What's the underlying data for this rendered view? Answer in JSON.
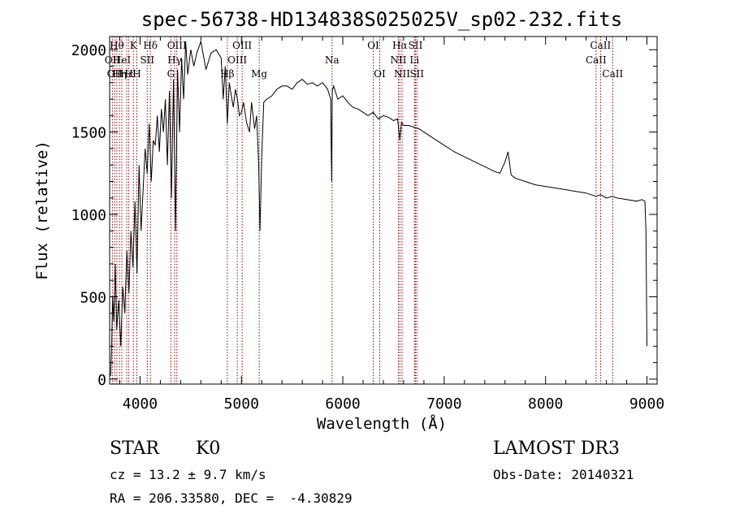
{
  "chart_data": {
    "type": "line",
    "title": "spec-56738-HD134838S025025V_sp02-232.fits",
    "xlabel": "Wavelength (Å)",
    "ylabel": "Flux (relative)",
    "xlim": [
      3700,
      9100
    ],
    "ylim": [
      -30,
      2080
    ],
    "xticks": [
      {
        "value": 4000,
        "label": "4000"
      },
      {
        "value": 5000,
        "label": "5000"
      },
      {
        "value": 6000,
        "label": "6000"
      },
      {
        "value": 7000,
        "label": "7000"
      },
      {
        "value": 8000,
        "label": "8000"
      },
      {
        "value": 9000,
        "label": "9000"
      }
    ],
    "yticks": [
      {
        "value": 0,
        "label": "0"
      },
      {
        "value": 500,
        "label": "500"
      },
      {
        "value": 1000,
        "label": "1000"
      },
      {
        "value": 1500,
        "label": "1500"
      },
      {
        "value": 2000,
        "label": "2000"
      }
    ],
    "series": [
      {
        "name": "spectrum",
        "color": "#000000",
        "x": [
          3710,
          3720,
          3730,
          3740,
          3755,
          3770,
          3790,
          3810,
          3830,
          3850,
          3870,
          3890,
          3910,
          3930,
          3950,
          3970,
          3990,
          4010,
          4030,
          4050,
          4070,
          4090,
          4110,
          4130,
          4150,
          4170,
          4190,
          4210,
          4230,
          4250,
          4270,
          4290,
          4310,
          4330,
          4350,
          4370,
          4390,
          4410,
          4430,
          4450,
          4470,
          4500,
          4530,
          4560,
          4600,
          4650,
          4700,
          4750,
          4800,
          4820,
          4840,
          4861,
          4880,
          4900,
          4920,
          4940,
          4960,
          4980,
          5000,
          5020,
          5050,
          5080,
          5100,
          5130,
          5150,
          5170,
          5183,
          5200,
          5220,
          5250,
          5300,
          5350,
          5400,
          5450,
          5500,
          5550,
          5600,
          5650,
          5700,
          5750,
          5800,
          5850,
          5880,
          5890,
          5896,
          5910,
          5950,
          6000,
          6050,
          6100,
          6150,
          6200,
          6250,
          6300,
          6350,
          6400,
          6450,
          6500,
          6540,
          6563,
          6580,
          6600,
          6650,
          6700,
          6750,
          6800,
          6850,
          6900,
          6950,
          7000,
          7100,
          7200,
          7300,
          7400,
          7500,
          7550,
          7600,
          7630,
          7660,
          7700,
          7800,
          7900,
          8000,
          8100,
          8200,
          8300,
          8400,
          8498,
          8542,
          8600,
          8662,
          8700,
          8800,
          8900,
          8950,
          8980,
          8990,
          9000
        ],
        "values": [
          20,
          200,
          500,
          350,
          700,
          300,
          480,
          200,
          560,
          400,
          780,
          520,
          900,
          680,
          1080,
          640,
          1300,
          900,
          1150,
          1400,
          1250,
          1550,
          1200,
          1450,
          1420,
          1600,
          1380,
          1640,
          1500,
          1700,
          1300,
          1750,
          1100,
          1820,
          900,
          1880,
          1500,
          1950,
          1700,
          2050,
          1850,
          2000,
          1900,
          1980,
          2050,
          1880,
          1980,
          2000,
          1950,
          1700,
          1900,
          1550,
          1800,
          1720,
          1650,
          1760,
          1700,
          1600,
          1620,
          1680,
          1560,
          1500,
          1680,
          1520,
          1600,
          1300,
          900,
          1350,
          1680,
          1700,
          1720,
          1760,
          1780,
          1780,
          1760,
          1800,
          1820,
          1790,
          1800,
          1780,
          1800,
          1760,
          1700,
          1200,
          1750,
          1780,
          1700,
          1720,
          1680,
          1650,
          1640,
          1620,
          1600,
          1620,
          1580,
          1600,
          1590,
          1570,
          1580,
          1450,
          1560,
          1540,
          1540,
          1530,
          1520,
          1500,
          1480,
          1460,
          1440,
          1420,
          1380,
          1350,
          1320,
          1290,
          1260,
          1250,
          1320,
          1380,
          1240,
          1220,
          1200,
          1180,
          1170,
          1160,
          1150,
          1140,
          1130,
          1110,
          1120,
          1100,
          1110,
          1100,
          1090,
          1080,
          1090,
          1080,
          900,
          200
        ]
      }
    ],
    "lines": [
      {
        "x": 3727,
        "label": "OII",
        "row": 2
      },
      {
        "x": 3750,
        "label": "OII",
        "row": 3
      },
      {
        "x": 3771,
        "label": "Hθ",
        "row": 1
      },
      {
        "x": 3797,
        "label": "Hη",
        "row": 3
      },
      {
        "x": 3820,
        "label": "HeI",
        "row": 2
      },
      {
        "x": 3869,
        "label": "Hε",
        "row": 3
      },
      {
        "x": 3889,
        "label": "H",
        "row": 3
      },
      {
        "x": 3934,
        "label": "K",
        "row": 1
      },
      {
        "x": 3968,
        "label": "H",
        "row": 3
      },
      {
        "x": 4071,
        "label": "SII",
        "row": 2
      },
      {
        "x": 4102,
        "label": "Hδ",
        "row": 1
      },
      {
        "x": 4304,
        "label": "G",
        "row": 3
      },
      {
        "x": 4341,
        "label": "Hγ",
        "row": 2
      },
      {
        "x": 4363,
        "label": "OIII",
        "row": 1
      },
      {
        "x": 4861,
        "label": "Hβ",
        "row": 3
      },
      {
        "x": 4959,
        "label": "OIII",
        "row": 2
      },
      {
        "x": 5007,
        "label": "OIII",
        "row": 1
      },
      {
        "x": 5175,
        "label": "Mg",
        "row": 3
      },
      {
        "x": 5894,
        "label": "Na",
        "row": 2
      },
      {
        "x": 6300,
        "label": "OI",
        "row": 1
      },
      {
        "x": 6364,
        "label": "OI",
        "row": 3
      },
      {
        "x": 6548,
        "label": "NII",
        "row": 2
      },
      {
        "x": 6563,
        "label": "Hα",
        "row": 1
      },
      {
        "x": 6584,
        "label": "NII",
        "row": 3
      },
      {
        "x": 6707,
        "label": "Li",
        "row": 2
      },
      {
        "x": 6717,
        "label": "SII",
        "row": 1
      },
      {
        "x": 6731,
        "label": "SII",
        "row": 3
      },
      {
        "x": 8498,
        "label": "CaII",
        "row": 2
      },
      {
        "x": 8542,
        "label": "CaII",
        "row": 1
      },
      {
        "x": 8662,
        "label": "CaII",
        "row": 3
      }
    ]
  },
  "info": {
    "class": "STAR",
    "subclass": "K0",
    "survey": "LAMOST DR3",
    "cz": "cz = 13.2 ± 9.7 km/s",
    "obs_date": "Obs-Date: 20140321",
    "coords": "RA = 206.33580, DEC =  -4.30829"
  }
}
